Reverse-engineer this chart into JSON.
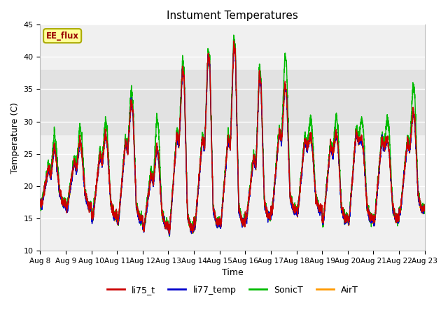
{
  "title": "Instument Temperatures",
  "xlabel": "Time",
  "ylabel": "Temperature (C)",
  "ylim": [
    10,
    45
  ],
  "n_days": 15,
  "tick_labels": [
    "Aug 8",
    "Aug 9",
    "Aug 10",
    "Aug 11",
    "Aug 12",
    "Aug 13",
    "Aug 14",
    "Aug 15",
    "Aug 16",
    "Aug 17",
    "Aug 18",
    "Aug 19",
    "Aug 20",
    "Aug 21",
    "Aug 22",
    "Aug 23"
  ],
  "colors": {
    "li75_t": "#cc0000",
    "li77_temp": "#0000cc",
    "SonicT": "#00bb00",
    "AirT": "#ff9900"
  },
  "background_color": "#ffffff",
  "plot_bg_color": "#f0f0f0",
  "grid_color": "#ffffff",
  "band_ranges": [
    [
      28,
      38
    ]
  ],
  "band_color": "#e2e2e2",
  "annotation_text": "EE_flux",
  "annotation_color": "#990000",
  "annotation_bg": "#ffff99",
  "annotation_border": "#aaaa00",
  "day_peaks": [
    26.5,
    27.5,
    28.5,
    33.5,
    26.5,
    38.5,
    40.8,
    42.2,
    37.5,
    36.0,
    28.0,
    28.5,
    27.5,
    27.5,
    32.0
  ],
  "day_peaks2": [
    23.0,
    24.0,
    25.0,
    27.0,
    22.0,
    28.0,
    27.5,
    27.5,
    24.5,
    28.5,
    27.5,
    26.5,
    28.5,
    27.5,
    27.0
  ],
  "day_mins": [
    17.5,
    17.0,
    15.5,
    15.0,
    14.0,
    13.5,
    14.5,
    14.5,
    15.5,
    16.5,
    16.5,
    15.0,
    15.0,
    15.0,
    16.5
  ],
  "sonic_extra": [
    1.5,
    1.5,
    1.5,
    1.0,
    4.0,
    0.5,
    0.0,
    0.5,
    0.5,
    4.0,
    2.0,
    2.0,
    2.5,
    2.5,
    3.5
  ]
}
